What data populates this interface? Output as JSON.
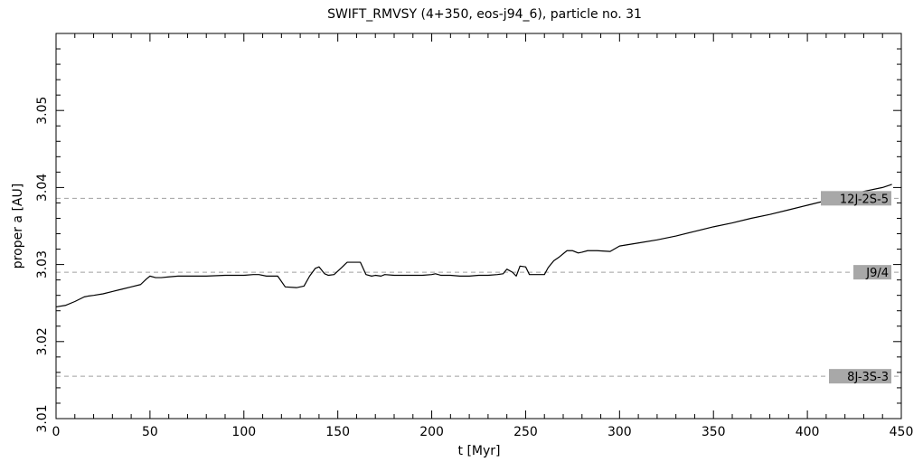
{
  "chart_data": {
    "type": "line",
    "title": "SWIFT_RMVSY (4+350, eos-j94_6), particle no. 31",
    "xlabel": "t [Myr]",
    "ylabel": "proper a [AU]",
    "xlim": [
      0,
      450
    ],
    "ylim": [
      3.01,
      3.06
    ],
    "x_ticks": [
      0,
      50,
      100,
      150,
      200,
      250,
      300,
      350,
      400,
      450
    ],
    "x_tick_labels": [
      "0",
      "50",
      "100",
      "150",
      "200",
      "250",
      "300",
      "350",
      "400",
      "450"
    ],
    "y_ticks": [
      3.01,
      3.02,
      3.03,
      3.04,
      3.05
    ],
    "y_tick_labels": [
      "3.01",
      "3.02",
      "3.03",
      "3.04",
      "3.05"
    ],
    "grid": false,
    "colors": {
      "line": "#000000",
      "resonance_line": "#a0a0a0",
      "label_bg": "#a8a8a8"
    },
    "resonances": [
      {
        "label": "12J-2S-5",
        "a": 3.0386
      },
      {
        "label": "J9/4",
        "a": 3.029
      },
      {
        "label": "8J-3S-3",
        "a": 3.0155
      }
    ],
    "series": [
      {
        "x": [
          0,
          5,
          10,
          15,
          17,
          20,
          25,
          30,
          35,
          40,
          45,
          48,
          50,
          53,
          56,
          60,
          65,
          70,
          80,
          90,
          95,
          100,
          105,
          108,
          112,
          118,
          122,
          128,
          132,
          135,
          138,
          140,
          143,
          145,
          148,
          152,
          155,
          160,
          162,
          165,
          168,
          170,
          173,
          175,
          180,
          185,
          190,
          195,
          200,
          202,
          205,
          210,
          215,
          220,
          225,
          230,
          235,
          238,
          240,
          243,
          245,
          247,
          250,
          252,
          255,
          260,
          262,
          265,
          268,
          272,
          275,
          278,
          280,
          283,
          288,
          295,
          300,
          310,
          320,
          330,
          340,
          350,
          360,
          370,
          380,
          390,
          400,
          410,
          420,
          430,
          440,
          445
        ],
        "y": [
          3.0245,
          3.0247,
          3.0252,
          3.0258,
          3.0259,
          3.026,
          3.0262,
          3.0265,
          3.0268,
          3.0271,
          3.0274,
          3.0281,
          3.0285,
          3.0283,
          3.0283,
          3.0284,
          3.0285,
          3.0285,
          3.0285,
          3.0286,
          3.0286,
          3.0286,
          3.0287,
          3.0287,
          3.0285,
          3.0285,
          3.0271,
          3.027,
          3.0272,
          3.0285,
          3.0295,
          3.0297,
          3.0288,
          3.0286,
          3.0287,
          3.0296,
          3.0303,
          3.0303,
          3.0303,
          3.0287,
          3.0285,
          3.0286,
          3.0285,
          3.0287,
          3.0286,
          3.0286,
          3.0286,
          3.0286,
          3.0287,
          3.0288,
          3.0286,
          3.0286,
          3.0285,
          3.0285,
          3.0286,
          3.0286,
          3.0287,
          3.0288,
          3.0294,
          3.029,
          3.0285,
          3.0298,
          3.0297,
          3.0287,
          3.0287,
          3.0287,
          3.0296,
          3.0305,
          3.031,
          3.0318,
          3.0318,
          3.0315,
          3.0316,
          3.0318,
          3.0318,
          3.0317,
          3.0324,
          3.0328,
          3.0332,
          3.0337,
          3.0343,
          3.0349,
          3.0354,
          3.036,
          3.0365,
          3.0371,
          3.0377,
          3.0383,
          3.0389,
          3.0395,
          3.04,
          3.0404
        ]
      }
    ]
  }
}
